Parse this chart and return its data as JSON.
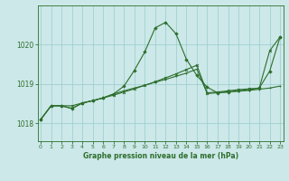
{
  "xlabel": "Graphe pression niveau de la mer (hPa)",
  "background_color": "#cce8e8",
  "grid_color": "#99cccc",
  "line_color": "#2d6e2d",
  "x_ticks": [
    0,
    1,
    2,
    3,
    4,
    5,
    6,
    7,
    8,
    9,
    10,
    11,
    12,
    13,
    14,
    15,
    16,
    17,
    18,
    19,
    20,
    21,
    22,
    23
  ],
  "y_ticks": [
    1018,
    1019,
    1020
  ],
  "ylim": [
    1017.55,
    1021.0
  ],
  "xlim": [
    -0.3,
    23.3
  ],
  "series_diagonal": [
    1018.1,
    1018.45,
    1018.45,
    1018.45,
    1018.52,
    1018.58,
    1018.65,
    1018.72,
    1018.8,
    1018.88,
    1018.97,
    1019.06,
    1019.16,
    1019.26,
    1019.37,
    1019.48,
    1018.78,
    1018.8,
    1018.83,
    1018.86,
    1018.88,
    1018.9,
    1019.85,
    1020.2
  ],
  "series_peaked": [
    1018.1,
    1018.45,
    1018.45,
    1018.38,
    1018.52,
    1018.58,
    1018.65,
    1018.75,
    1018.95,
    1019.35,
    1019.82,
    1020.43,
    1020.57,
    1020.28,
    1019.63,
    1019.22,
    1018.92,
    1018.78,
    1018.8,
    1018.83,
    1018.86,
    1018.9,
    1019.33,
    1020.2
  ],
  "series_flat": [
    1018.1,
    1018.45,
    1018.45,
    1018.38,
    1018.52,
    1018.58,
    1018.65,
    1018.75,
    1018.83,
    1018.9,
    1018.97,
    1019.05,
    1019.12,
    1019.2,
    1019.28,
    1019.38,
    1018.76,
    1018.78,
    1018.8,
    1018.82,
    1018.84,
    1018.87,
    1018.9,
    1018.95
  ]
}
